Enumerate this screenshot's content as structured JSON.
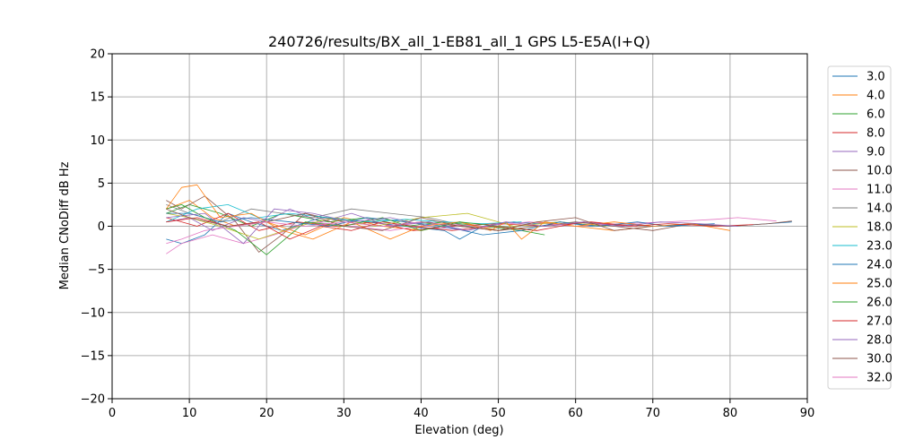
{
  "chart_data": {
    "type": "line",
    "title": "240726/results/BX_all_1-EB81_all_1 GPS L5-E5A(I+Q)",
    "xlabel": "Elevation (deg)",
    "ylabel": "Median CNoDiff dB Hz",
    "xlim": [
      0,
      90
    ],
    "ylim": [
      -20,
      20
    ],
    "xticks": [
      0,
      10,
      20,
      30,
      40,
      50,
      60,
      70,
      80,
      90
    ],
    "yticks": [
      -20,
      -15,
      -10,
      -5,
      0,
      5,
      10,
      15,
      20
    ],
    "grid": true,
    "legend_position": "right-outside",
    "series": [
      {
        "name": "3.0",
        "color": "#1f77b4",
        "x": [
          7,
          9,
          12,
          15,
          18,
          22,
          27,
          33,
          38,
          43,
          45,
          48,
          52,
          55,
          58,
          62,
          66,
          70,
          75,
          80,
          85,
          88
        ],
        "y": [
          -1.5,
          -2,
          -1,
          1.5,
          0.5,
          -0.5,
          1,
          0.5,
          0,
          -0.5,
          -1.5,
          0,
          0.5,
          0.3,
          0.5,
          0,
          0.3,
          0,
          0.2,
          0,
          0.3,
          0.5
        ]
      },
      {
        "name": "4.0",
        "color": "#ff7f0e",
        "x": [
          7,
          10,
          13,
          16,
          20,
          25,
          30,
          35,
          40,
          45,
          50,
          55,
          60,
          65,
          70
        ],
        "y": [
          2,
          3,
          1,
          0,
          0.5,
          -1,
          1,
          0,
          -0.5,
          0.5,
          -0.5,
          0.5,
          0,
          -0.5,
          0
        ]
      },
      {
        "name": "6.0",
        "color": "#2ca02c",
        "x": [
          7,
          10,
          14,
          18,
          22,
          28,
          33,
          38,
          43,
          48,
          53,
          56
        ],
        "y": [
          1.5,
          2.5,
          1.5,
          0,
          1.5,
          0.5,
          1,
          0,
          0.5,
          0,
          -0.5,
          -1
        ]
      },
      {
        "name": "8.0",
        "color": "#d62728",
        "x": [
          7,
          11,
          15,
          19,
          24,
          29,
          34,
          39,
          44,
          50,
          56,
          62,
          68
        ],
        "y": [
          1,
          0,
          1.5,
          -0.5,
          0.5,
          0,
          0.5,
          -0.5,
          0,
          0.3,
          0,
          0.5,
          0
        ]
      },
      {
        "name": "9.0",
        "color": "#9467bd",
        "x": [
          7,
          10,
          13,
          17,
          20,
          23,
          27,
          31,
          36,
          41,
          46,
          51
        ],
        "y": [
          0.5,
          1,
          -0.5,
          1,
          0.5,
          2,
          0.5,
          1.5,
          0,
          0.5,
          -0.5,
          0.5
        ]
      },
      {
        "name": "10.0",
        "color": "#8c564b",
        "x": [
          7,
          9,
          12,
          16,
          19,
          22,
          25,
          30,
          35,
          40,
          45,
          50,
          55,
          60,
          65,
          70,
          75,
          80,
          85,
          88
        ],
        "y": [
          3,
          2,
          3.5,
          0.5,
          -3,
          -1,
          1.5,
          0.5,
          0,
          0.5,
          0,
          -0.5,
          0,
          0.5,
          0,
          -0.5,
          0.3,
          0,
          0.3,
          0.6
        ]
      },
      {
        "name": "11.0",
        "color": "#e377c2",
        "x": [
          7,
          9,
          13,
          17,
          21,
          26,
          31,
          36,
          42,
          48,
          54,
          60,
          66,
          72,
          78,
          81,
          86
        ],
        "y": [
          -3.2,
          -2,
          -1,
          -2,
          -1,
          0.5,
          0,
          -0.5,
          0.3,
          0,
          0.5,
          0,
          0.3,
          0.5,
          0.8,
          1,
          0.6
        ]
      },
      {
        "name": "14.0",
        "color": "#7f7f7f",
        "x": [
          7,
          10,
          14,
          18,
          22,
          26,
          31,
          36,
          41,
          46,
          50
        ],
        "y": [
          2.5,
          1.5,
          0.5,
          2,
          1.5,
          1,
          2,
          1.5,
          1,
          0,
          -0.5
        ]
      },
      {
        "name": "18.0",
        "color": "#bcbd22",
        "x": [
          7,
          10,
          14,
          19,
          24,
          29,
          34,
          40,
          46,
          52,
          58,
          64
        ],
        "y": [
          1.5,
          1,
          0,
          -1.5,
          0,
          1,
          0,
          1,
          1.5,
          0,
          0.5,
          0
        ]
      },
      {
        "name": "23.0",
        "color": "#17becf",
        "x": [
          7,
          11,
          15,
          19,
          23,
          28,
          33,
          38,
          43,
          48,
          53
        ],
        "y": [
          0.5,
          2,
          2.5,
          1,
          1.5,
          1,
          0.5,
          0.8,
          0.5,
          0.3,
          0.5
        ]
      },
      {
        "name": "24.0",
        "color": "#1f77b4",
        "x": [
          7,
          10,
          14,
          18,
          23,
          28,
          33,
          38,
          43,
          48,
          53,
          58,
          63,
          68,
          72,
          78
        ],
        "y": [
          1.5,
          1.5,
          0.5,
          1,
          0.5,
          0,
          1,
          0.5,
          0,
          -1,
          -0.5,
          0.5,
          0,
          0.5,
          0,
          0.3
        ]
      },
      {
        "name": "25.0",
        "color": "#ff7f0e",
        "x": [
          7,
          9,
          11,
          14,
          18,
          22,
          26,
          31,
          36,
          40,
          45,
          49,
          51,
          53,
          56,
          60,
          65,
          70,
          75,
          80
        ],
        "y": [
          2,
          4.5,
          4.8,
          1,
          1.5,
          -0.5,
          -1.5,
          0.5,
          -1.5,
          0,
          0.5,
          -0.5,
          0.5,
          -1.5,
          0.5,
          0,
          0.5,
          0,
          0.3,
          -0.5
        ]
      },
      {
        "name": "26.0",
        "color": "#2ca02c",
        "x": [
          7,
          9,
          12,
          16,
          20,
          25,
          30,
          35,
          40,
          45,
          50,
          55
        ],
        "y": [
          2,
          2.5,
          1,
          -0.5,
          -3.3,
          0.5,
          0,
          1,
          -0.5,
          0.5,
          0,
          -0.5
        ]
      },
      {
        "name": "27.0",
        "color": "#d62728",
        "x": [
          7,
          11,
          15,
          19,
          23,
          27,
          31,
          35,
          39,
          44,
          49,
          55,
          61,
          67,
          72,
          78,
          83
        ],
        "y": [
          0.5,
          1,
          0,
          0.5,
          -1.5,
          0,
          -0.5,
          0.5,
          0,
          -0.5,
          0,
          -0.5,
          0.5,
          0,
          0.3,
          0,
          0.2
        ]
      },
      {
        "name": "28.0",
        "color": "#9467bd",
        "x": [
          7,
          12,
          17,
          21,
          26,
          31,
          36,
          41,
          46,
          51,
          56,
          61,
          66,
          71,
          76,
          81
        ],
        "y": [
          1,
          1.5,
          -2,
          2,
          1.5,
          0.5,
          1,
          0,
          -0.5,
          0.5,
          0,
          0.5,
          0,
          0.5,
          0.3,
          0
        ]
      },
      {
        "name": "30.0",
        "color": "#8c564b",
        "x": [
          7,
          10,
          15,
          20,
          25,
          30,
          35,
          40,
          45,
          50,
          55,
          60,
          65,
          70
        ],
        "y": [
          2,
          1,
          0,
          0.5,
          1.5,
          0,
          -0.5,
          1,
          0,
          -0.5,
          0.5,
          1,
          -0.5,
          0
        ]
      },
      {
        "name": "32.0",
        "color": "#e377c2",
        "x": [
          7,
          9,
          12,
          16,
          20,
          25,
          30,
          35,
          40
        ],
        "y": [
          -2,
          -1.5,
          -0.5,
          0,
          0.5,
          0,
          0.5,
          0,
          0.5
        ]
      }
    ]
  }
}
